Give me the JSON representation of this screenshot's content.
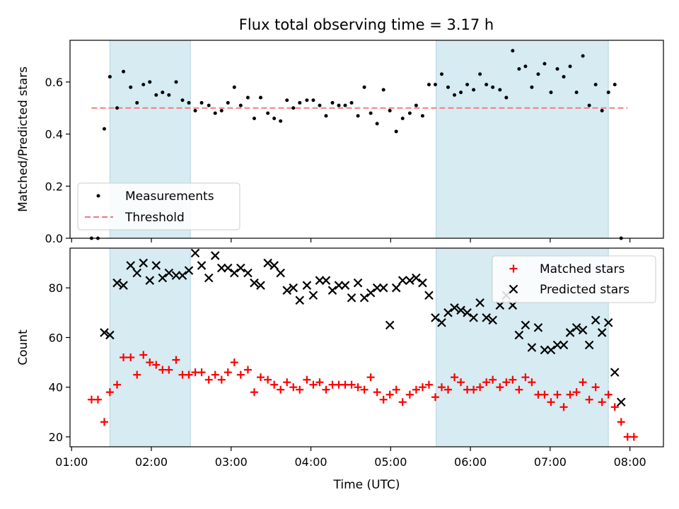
{
  "chart_data": [
    {
      "type": "scatter",
      "title": "Flux total observing time = 3.17 h",
      "xlabel": "",
      "ylabel": "Matched/Predicted stars",
      "xlim": [
        0.98,
        8.42
      ],
      "ylim": [
        0,
        0.76
      ],
      "yticks": [
        0.0,
        0.2,
        0.4,
        0.6
      ],
      "ytick_labels": [
        "0.0",
        "0.2",
        "0.4",
        "0.6"
      ],
      "shaded_x_ranges": [
        [
          1.48,
          2.49
        ],
        [
          5.57,
          7.73
        ]
      ],
      "legend": "lower-left",
      "series": [
        {
          "name": "Measurements",
          "marker": "dot",
          "color": "#000000",
          "x": [
            1.25,
            1.33,
            1.41,
            1.48,
            1.57,
            1.65,
            1.74,
            1.82,
            1.9,
            1.98,
            2.06,
            2.14,
            2.22,
            2.31,
            2.39,
            2.47,
            2.55,
            2.63,
            2.72,
            2.8,
            2.88,
            2.96,
            3.04,
            3.12,
            3.21,
            3.29,
            3.37,
            3.46,
            3.54,
            3.62,
            3.7,
            3.78,
            3.86,
            3.95,
            4.03,
            4.11,
            4.19,
            4.27,
            4.35,
            4.43,
            4.51,
            4.59,
            4.67,
            4.75,
            4.83,
            4.91,
            4.99,
            5.07,
            5.15,
            5.24,
            5.32,
            5.4,
            5.48,
            5.56,
            5.64,
            5.72,
            5.8,
            5.88,
            5.96,
            6.04,
            6.12,
            6.2,
            6.28,
            6.37,
            6.45,
            6.53,
            6.61,
            6.69,
            6.77,
            6.85,
            6.93,
            7.01,
            7.09,
            7.17,
            7.25,
            7.33,
            7.41,
            7.49,
            7.57,
            7.65,
            7.73,
            7.81,
            7.89,
            7.97,
            8.05
          ],
          "y": [
            0.0,
            0.0,
            0.42,
            0.62,
            0.5,
            0.64,
            0.58,
            0.52,
            0.59,
            0.6,
            0.55,
            0.56,
            0.55,
            0.6,
            0.53,
            0.52,
            0.49,
            0.52,
            0.51,
            0.48,
            0.49,
            0.52,
            0.58,
            0.51,
            0.54,
            0.46,
            0.54,
            0.48,
            0.46,
            0.45,
            0.53,
            0.5,
            0.52,
            0.53,
            0.53,
            0.51,
            0.47,
            0.52,
            0.51,
            0.51,
            0.52,
            0.47,
            0.58,
            0.48,
            0.44,
            0.57,
            0.49,
            0.41,
            0.46,
            0.48,
            0.51,
            0.47,
            0.59,
            0.59,
            0.63,
            0.58,
            0.55,
            0.56,
            0.59,
            0.57,
            0.63,
            0.59,
            0.58,
            0.57,
            0.54,
            0.72,
            0.65,
            0.66,
            0.58,
            0.63,
            0.67,
            0.56,
            0.65,
            0.62,
            0.66,
            0.56,
            0.7,
            0.51,
            0.59,
            0.49,
            0.56,
            0.59,
            0.0,
            null,
            null
          ]
        },
        {
          "name": "Threshold",
          "marker": "dashed-line",
          "color": "#f08080",
          "x": [
            1.25,
            7.97
          ],
          "y": [
            0.5,
            0.5
          ]
        }
      ]
    },
    {
      "type": "scatter",
      "title": "",
      "xlabel": "Time (UTC)",
      "ylabel": "Count",
      "xlim": [
        0.98,
        8.42
      ],
      "ylim": [
        16,
        96
      ],
      "xticks": [
        1,
        2,
        3,
        4,
        5,
        6,
        7,
        8
      ],
      "xtick_labels": [
        "01:00",
        "02:00",
        "03:00",
        "04:00",
        "05:00",
        "06:00",
        "07:00",
        "08:00"
      ],
      "yticks": [
        20,
        40,
        60,
        80
      ],
      "ytick_labels": [
        "20",
        "40",
        "60",
        "80"
      ],
      "shaded_x_ranges": [
        [
          1.48,
          2.49
        ],
        [
          5.57,
          7.73
        ]
      ],
      "legend": "upper-right",
      "series": [
        {
          "name": "Matched stars",
          "marker": "plus",
          "color": "#ff0000",
          "x": [
            1.25,
            1.33,
            1.41,
            1.48,
            1.57,
            1.65,
            1.74,
            1.82,
            1.9,
            1.98,
            2.06,
            2.14,
            2.22,
            2.31,
            2.39,
            2.47,
            2.55,
            2.63,
            2.72,
            2.8,
            2.88,
            2.96,
            3.04,
            3.12,
            3.21,
            3.29,
            3.37,
            3.46,
            3.54,
            3.62,
            3.7,
            3.78,
            3.86,
            3.95,
            4.03,
            4.11,
            4.19,
            4.27,
            4.35,
            4.43,
            4.51,
            4.59,
            4.67,
            4.75,
            4.83,
            4.91,
            4.99,
            5.07,
            5.15,
            5.24,
            5.32,
            5.4,
            5.48,
            5.56,
            5.64,
            5.72,
            5.8,
            5.88,
            5.96,
            6.04,
            6.12,
            6.2,
            6.28,
            6.37,
            6.45,
            6.53,
            6.61,
            6.69,
            6.77,
            6.85,
            6.93,
            7.01,
            7.09,
            7.17,
            7.25,
            7.33,
            7.41,
            7.49,
            7.57,
            7.65,
            7.73,
            7.81,
            7.89,
            7.97,
            8.05
          ],
          "y": [
            35,
            35,
            26,
            38,
            41,
            52,
            52,
            45,
            53,
            50,
            49,
            47,
            47,
            51,
            45,
            45,
            46,
            46,
            43,
            45,
            43,
            46,
            50,
            45,
            47,
            38,
            44,
            43,
            41,
            39,
            42,
            40,
            39,
            43,
            41,
            42,
            39,
            41,
            41,
            41,
            41,
            40,
            39,
            44,
            38,
            35,
            37,
            39,
            34,
            37,
            39,
            40,
            41,
            36,
            40,
            39,
            44,
            42,
            39,
            39,
            40,
            42,
            43,
            40,
            42,
            43,
            39,
            44,
            42,
            37,
            37,
            34,
            37,
            32,
            37,
            38,
            42,
            35,
            40,
            34,
            37,
            32,
            26,
            20,
            20
          ]
        },
        {
          "name": "Predicted stars",
          "marker": "x",
          "color": "#000000",
          "x": [
            1.41,
            1.48,
            1.57,
            1.65,
            1.74,
            1.82,
            1.9,
            1.98,
            2.06,
            2.14,
            2.22,
            2.31,
            2.39,
            2.47,
            2.55,
            2.63,
            2.72,
            2.8,
            2.88,
            2.96,
            3.04,
            3.12,
            3.21,
            3.29,
            3.37,
            3.46,
            3.54,
            3.62,
            3.7,
            3.78,
            3.86,
            3.95,
            4.03,
            4.11,
            4.19,
            4.27,
            4.35,
            4.43,
            4.51,
            4.59,
            4.67,
            4.75,
            4.83,
            4.91,
            4.99,
            5.07,
            5.15,
            5.24,
            5.32,
            5.4,
            5.48,
            5.56,
            5.64,
            5.72,
            5.8,
            5.88,
            5.96,
            6.04,
            6.12,
            6.2,
            6.28,
            6.37,
            6.45,
            6.53,
            6.61,
            6.69,
            6.77,
            6.85,
            6.93,
            7.01,
            7.09,
            7.17,
            7.25,
            7.33,
            7.41,
            7.49,
            7.57,
            7.65,
            7.73,
            7.81,
            7.89,
            7.97
          ],
          "y": [
            62,
            61,
            82,
            81,
            89,
            86,
            90,
            83,
            89,
            84,
            86,
            85,
            85,
            87,
            94,
            89,
            84,
            93,
            88,
            88,
            86,
            88,
            86,
            82,
            81,
            90,
            89,
            86,
            79,
            80,
            75,
            81,
            77,
            83,
            83,
            79,
            81,
            81,
            76,
            82,
            76,
            78,
            80,
            80,
            65,
            80,
            83,
            83,
            84,
            82,
            77,
            68,
            66,
            70,
            72,
            71,
            70,
            68,
            74,
            68,
            67,
            73,
            77,
            73,
            61,
            65,
            56,
            64,
            55,
            55,
            57,
            57,
            62,
            64,
            63,
            57,
            67,
            62,
            66,
            46,
            34,
            null
          ]
        }
      ]
    }
  ]
}
